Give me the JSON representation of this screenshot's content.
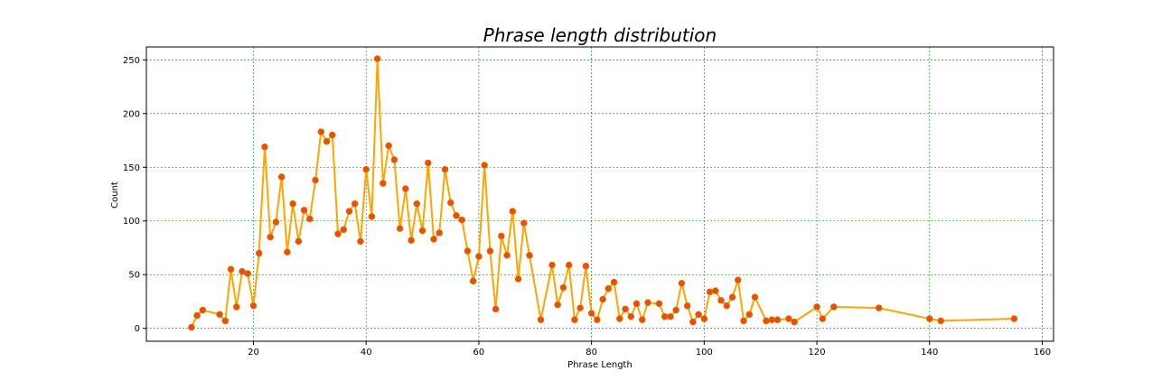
{
  "chart_data": {
    "type": "line",
    "title": "Phrase length distribution",
    "xlabel": "Phrase Length",
    "ylabel": "Count",
    "xlim": [
      1,
      162
    ],
    "ylim": [
      -12,
      262
    ],
    "xticks": [
      20,
      40,
      60,
      80,
      100,
      120,
      140,
      160
    ],
    "yticks": [
      0,
      50,
      100,
      150,
      200,
      250
    ],
    "grid": true,
    "line_color": "#FFA500",
    "marker_face_color": "#FF4500",
    "grid_color": "#008000",
    "series": [
      {
        "x": [
          9,
          10,
          11,
          14,
          15,
          16,
          17,
          18,
          19,
          20,
          21,
          22,
          23,
          24,
          25,
          26,
          27,
          28,
          29,
          30,
          31,
          32,
          33,
          34,
          35,
          36,
          37,
          38,
          39,
          40,
          41,
          42,
          43,
          44,
          45,
          46,
          47,
          48,
          49,
          50,
          51,
          52,
          53,
          54,
          55,
          56,
          57,
          58,
          59,
          60,
          61,
          62,
          63,
          64,
          65,
          66,
          67,
          68,
          69,
          71,
          73,
          74,
          75,
          76,
          77,
          78,
          79,
          80,
          81,
          82,
          83,
          84,
          85,
          86,
          87,
          88,
          89,
          90,
          92,
          93,
          94,
          95,
          96,
          97,
          98,
          99,
          100,
          101,
          102,
          103,
          104,
          105,
          106,
          107,
          108,
          109,
          111,
          112,
          113,
          115,
          116,
          120,
          121,
          123,
          131,
          140,
          142,
          155
        ],
        "y": [
          1,
          12,
          17,
          13,
          7,
          55,
          20,
          53,
          51,
          21,
          70,
          169,
          85,
          99,
          141,
          71,
          116,
          81,
          110,
          102,
          138,
          183,
          174,
          180,
          88,
          92,
          109,
          116,
          81,
          148,
          104,
          251,
          135,
          170,
          157,
          93,
          130,
          82,
          116,
          91,
          154,
          83,
          89,
          148,
          117,
          105,
          101,
          72,
          44,
          67,
          152,
          72,
          18,
          86,
          68,
          109,
          46,
          98,
          68,
          8,
          59,
          22,
          38,
          59,
          8,
          19,
          58,
          14,
          8,
          27,
          37,
          43,
          9,
          18,
          11,
          23,
          8,
          24,
          23,
          11,
          11,
          17,
          42,
          21,
          6,
          13,
          9,
          34,
          35,
          26,
          21,
          29,
          45,
          7,
          13,
          29,
          7,
          8,
          8,
          9,
          6,
          20,
          9,
          20,
          19,
          9,
          7,
          9
        ]
      }
    ]
  }
}
